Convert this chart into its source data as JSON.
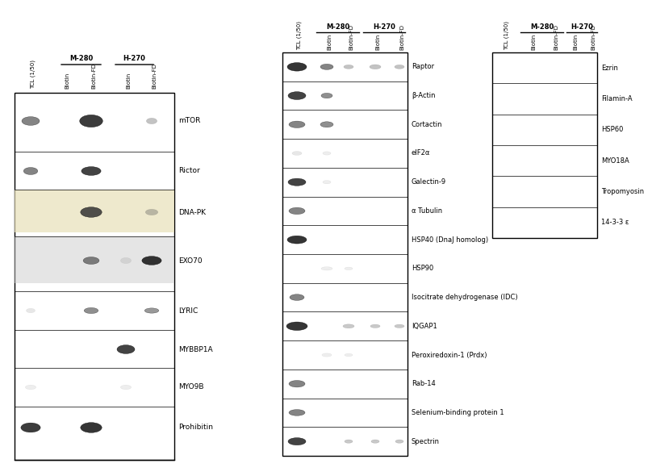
{
  "title": "",
  "background_color": "#ffffff",
  "panel1": {
    "header_group1": "M-280",
    "header_group2": "H-270",
    "col_labels": [
      "TCL (1/50)",
      "Biotin",
      "Biotin-FD",
      "Biotin",
      "Biotin-FD"
    ],
    "row_labels": [
      "mTOR",
      "Rictor",
      "DNA-PK",
      "EXO70",
      "LYRIC",
      "MYBBP1A",
      "MYO9B",
      "Prohibitin"
    ],
    "row_heights": [
      1.2,
      0.8,
      1.1,
      1.1,
      0.8,
      0.8,
      0.8,
      0.9
    ]
  },
  "panel2": {
    "header_group1": "M-280",
    "header_group2": "H-270",
    "col_labels": [
      "TCL (1/50)",
      "Biotin",
      "Biotin-FD",
      "Biotin",
      "Biotin-FD"
    ],
    "row_labels": [
      "Raptor",
      "β-Actin",
      "Cortactin",
      "eIF2α",
      "Galectin-9",
      "α Tubulin",
      "HSP40 (DnaJ homolog)",
      "HSP90",
      "Isocitrate dehydrogenase (IDC)",
      "IQGAP1",
      "Peroxiredoxin-1 (Prdx)",
      "Rab-14",
      "Selenium-binding protein 1",
      "Spectrin"
    ]
  },
  "panel3": {
    "header_group1": "M-280",
    "header_group2": "H-270",
    "col_labels": [
      "TCL (1/50)",
      "Biotin",
      "Biotin-FD",
      "Biotin",
      "Biotin-FD"
    ],
    "row_labels": [
      "Ezrin",
      "Filamin-A",
      "HSP60",
      "MYO18A",
      "Tropomyosin",
      "14-3-3 ε"
    ]
  }
}
